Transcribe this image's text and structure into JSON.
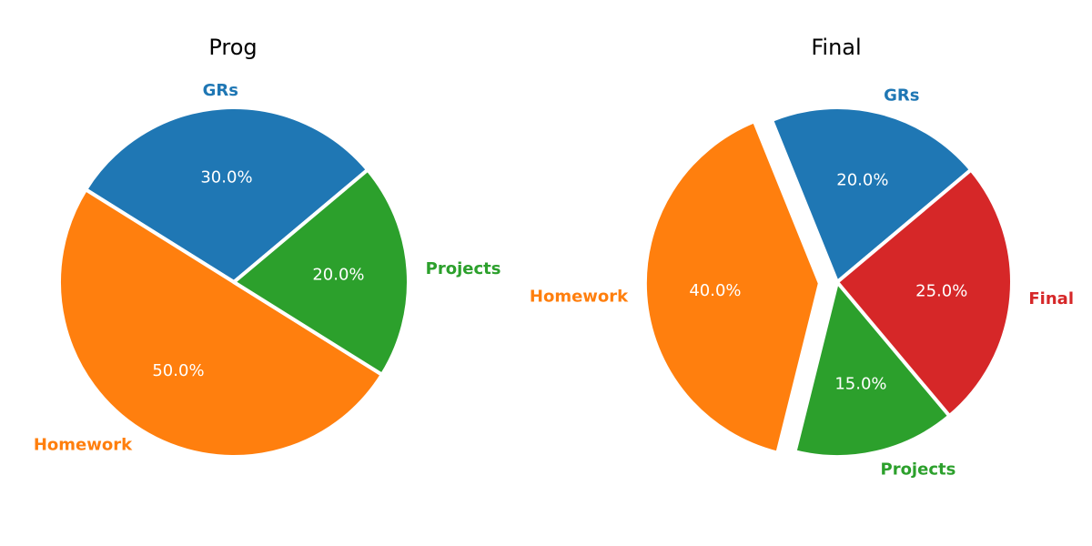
{
  "chart_data": [
    {
      "type": "pie",
      "title": "Prog",
      "slices": [
        {
          "label": "GRs",
          "value": 30,
          "pct_label": "30.0%",
          "color": "#1f77b4",
          "explode": 0
        },
        {
          "label": "Homework",
          "value": 50,
          "pct_label": "50.0%",
          "color": "#ff7f0e",
          "explode": 0
        },
        {
          "label": "Projects",
          "value": 20,
          "pct_label": "20.0%",
          "color": "#2ca02c",
          "explode": 0
        }
      ]
    },
    {
      "type": "pie",
      "title": "Final",
      "slices": [
        {
          "label": "GRs",
          "value": 20,
          "pct_label": "20.0%",
          "color": "#1f77b4",
          "explode": 0
        },
        {
          "label": "Homework",
          "value": 40,
          "pct_label": "40.0%",
          "color": "#ff7f0e",
          "explode": 0.1
        },
        {
          "label": "Projects",
          "value": 15,
          "pct_label": "15.0%",
          "color": "#2ca02c",
          "explode": 0
        },
        {
          "label": "Final",
          "value": 25,
          "pct_label": "25.0%",
          "color": "#d62728",
          "explode": 0
        }
      ]
    }
  ]
}
